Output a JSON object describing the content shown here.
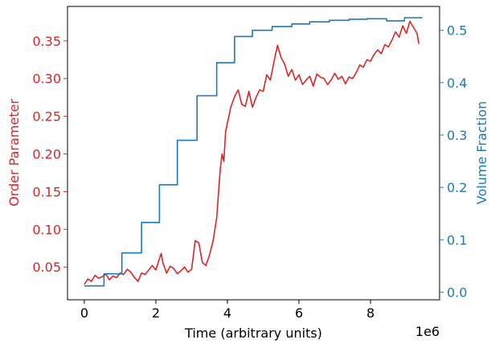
{
  "chart_data": {
    "type": "line",
    "xlabel": "Time (arbitrary units)",
    "x_offset_label": "1e6",
    "xlim": [
      -0.47,
      9.93
    ],
    "x_ticks": [
      0,
      2,
      4,
      6,
      8
    ],
    "x_tick_labels": [
      "0",
      "2",
      "4",
      "6",
      "8"
    ],
    "grid": false,
    "left_axis": {
      "label": "Order Parameter",
      "color": "#d62728",
      "ylim": [
        0.0065,
        0.3957
      ],
      "ticks": [
        0.05,
        0.1,
        0.15,
        0.2,
        0.25,
        0.3,
        0.35
      ],
      "tick_labels": [
        "0.05",
        "0.10",
        "0.15",
        "0.20",
        "0.25",
        "0.30",
        "0.35"
      ]
    },
    "right_axis": {
      "label": "Volume Fraction",
      "color": "#1f77b4",
      "ylim": [
        -0.0145,
        0.5455
      ],
      "ticks": [
        0.0,
        0.1,
        0.2,
        0.3,
        0.4,
        0.5
      ],
      "tick_labels": [
        "0.0",
        "0.1",
        "0.2",
        "0.3",
        "0.4",
        "0.5"
      ]
    },
    "series": [
      {
        "axis": "left",
        "color": "#d62728",
        "points": [
          [
            0.0,
            0.027
          ],
          [
            0.1,
            0.034
          ],
          [
            0.2,
            0.031
          ],
          [
            0.3,
            0.039
          ],
          [
            0.4,
            0.035
          ],
          [
            0.5,
            0.037
          ],
          [
            0.6,
            0.041
          ],
          [
            0.7,
            0.033
          ],
          [
            0.8,
            0.038
          ],
          [
            0.9,
            0.036
          ],
          [
            1.0,
            0.042
          ],
          [
            1.1,
            0.04
          ],
          [
            1.2,
            0.047
          ],
          [
            1.3,
            0.043
          ],
          [
            1.4,
            0.036
          ],
          [
            1.5,
            0.031
          ],
          [
            1.6,
            0.042
          ],
          [
            1.7,
            0.04
          ],
          [
            1.8,
            0.046
          ],
          [
            1.9,
            0.052
          ],
          [
            2.0,
            0.046
          ],
          [
            2.1,
            0.061
          ],
          [
            2.15,
            0.068
          ],
          [
            2.2,
            0.055
          ],
          [
            2.3,
            0.042
          ],
          [
            2.4,
            0.051
          ],
          [
            2.5,
            0.048
          ],
          [
            2.6,
            0.041
          ],
          [
            2.7,
            0.045
          ],
          [
            2.8,
            0.05
          ],
          [
            2.9,
            0.043
          ],
          [
            3.0,
            0.047
          ],
          [
            3.1,
            0.085
          ],
          [
            3.2,
            0.082
          ],
          [
            3.3,
            0.056
          ],
          [
            3.4,
            0.052
          ],
          [
            3.5,
            0.066
          ],
          [
            3.6,
            0.085
          ],
          [
            3.7,
            0.115
          ],
          [
            3.8,
            0.18
          ],
          [
            3.85,
            0.2
          ],
          [
            3.9,
            0.19
          ],
          [
            3.95,
            0.23
          ],
          [
            4.0,
            0.241
          ],
          [
            4.1,
            0.263
          ],
          [
            4.2,
            0.276
          ],
          [
            4.3,
            0.285
          ],
          [
            4.4,
            0.266
          ],
          [
            4.5,
            0.263
          ],
          [
            4.6,
            0.283
          ],
          [
            4.7,
            0.262
          ],
          [
            4.8,
            0.275
          ],
          [
            4.9,
            0.285
          ],
          [
            5.0,
            0.283
          ],
          [
            5.1,
            0.305
          ],
          [
            5.2,
            0.298
          ],
          [
            5.3,
            0.322
          ],
          [
            5.4,
            0.344
          ],
          [
            5.5,
            0.328
          ],
          [
            5.6,
            0.319
          ],
          [
            5.7,
            0.303
          ],
          [
            5.8,
            0.312
          ],
          [
            5.9,
            0.298
          ],
          [
            6.0,
            0.305
          ],
          [
            6.1,
            0.292
          ],
          [
            6.2,
            0.298
          ],
          [
            6.3,
            0.303
          ],
          [
            6.4,
            0.29
          ],
          [
            6.5,
            0.306
          ],
          [
            6.6,
            0.302
          ],
          [
            6.7,
            0.3
          ],
          [
            6.8,
            0.292
          ],
          [
            6.9,
            0.298
          ],
          [
            7.0,
            0.307
          ],
          [
            7.1,
            0.299
          ],
          [
            7.2,
            0.303
          ],
          [
            7.3,
            0.293
          ],
          [
            7.4,
            0.302
          ],
          [
            7.5,
            0.3
          ],
          [
            7.6,
            0.308
          ],
          [
            7.7,
            0.318
          ],
          [
            7.8,
            0.315
          ],
          [
            7.9,
            0.325
          ],
          [
            8.0,
            0.323
          ],
          [
            8.1,
            0.332
          ],
          [
            8.2,
            0.338
          ],
          [
            8.3,
            0.333
          ],
          [
            8.4,
            0.345
          ],
          [
            8.5,
            0.342
          ],
          [
            8.6,
            0.351
          ],
          [
            8.7,
            0.362
          ],
          [
            8.8,
            0.355
          ],
          [
            8.9,
            0.37
          ],
          [
            9.0,
            0.36
          ],
          [
            9.1,
            0.376
          ],
          [
            9.2,
            0.368
          ],
          [
            9.3,
            0.36
          ],
          [
            9.35,
            0.346
          ]
        ]
      },
      {
        "axis": "right",
        "color": "#1f77b4",
        "points": [
          [
            0.0,
            0.012
          ],
          [
            0.55,
            0.012
          ],
          [
            0.55,
            0.035
          ],
          [
            1.05,
            0.035
          ],
          [
            1.05,
            0.075
          ],
          [
            1.6,
            0.075
          ],
          [
            1.6,
            0.133
          ],
          [
            2.1,
            0.133
          ],
          [
            2.1,
            0.205
          ],
          [
            2.6,
            0.205
          ],
          [
            2.6,
            0.29
          ],
          [
            3.15,
            0.29
          ],
          [
            3.15,
            0.375
          ],
          [
            3.7,
            0.375
          ],
          [
            3.7,
            0.438
          ],
          [
            4.2,
            0.438
          ],
          [
            4.2,
            0.488
          ],
          [
            4.7,
            0.488
          ],
          [
            4.7,
            0.5
          ],
          [
            5.25,
            0.5
          ],
          [
            5.25,
            0.507
          ],
          [
            5.8,
            0.507
          ],
          [
            5.8,
            0.512
          ],
          [
            6.3,
            0.512
          ],
          [
            6.3,
            0.516
          ],
          [
            6.85,
            0.516
          ],
          [
            6.85,
            0.519
          ],
          [
            7.4,
            0.519
          ],
          [
            7.4,
            0.521
          ],
          [
            7.9,
            0.521
          ],
          [
            7.9,
            0.522
          ],
          [
            8.45,
            0.522
          ],
          [
            8.45,
            0.518
          ],
          [
            8.95,
            0.518
          ],
          [
            8.95,
            0.524
          ],
          [
            9.45,
            0.524
          ]
        ]
      }
    ]
  }
}
